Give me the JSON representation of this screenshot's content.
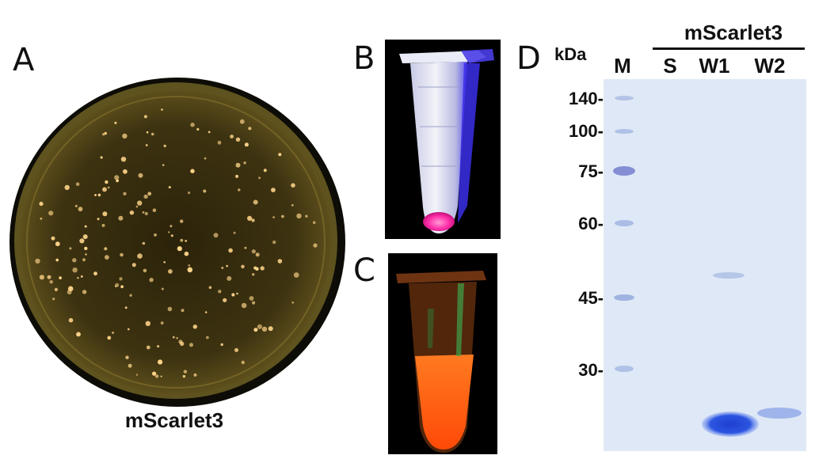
{
  "panels": {
    "a": {
      "letter": "A",
      "caption": "mScarlet3"
    },
    "b": {
      "letter": "B"
    },
    "c": {
      "letter": "C"
    },
    "d": {
      "letter": "D",
      "unit": "kDa",
      "group_label": "mScarlet3",
      "lanes": [
        "M",
        "S",
        "W1",
        "W2"
      ],
      "markers": [
        "140-",
        "100-",
        "75-",
        "60-",
        "45-",
        "30-"
      ]
    }
  },
  "colors": {
    "agar": "#3a3110",
    "colony": "#ffd58a",
    "tube_pink": "#ff2fa8",
    "tube_orange": "#ff5a10",
    "gel_bg": "#dfe8f6",
    "band_blue": "#2b4fd8"
  }
}
